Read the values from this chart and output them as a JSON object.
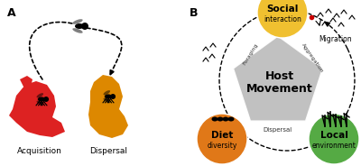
{
  "panel_A_label": "A",
  "panel_B_label": "B",
  "acquisition_label": "Acquisition",
  "dispersal_label": "Dispersal",
  "social_label1": "Social",
  "social_label2": "interaction",
  "diet_label1": "Diet",
  "diet_label2": "diversity",
  "local_label1": "Local",
  "local_label2": "environment",
  "host_movement_label1": "Host",
  "host_movement_label2": "Movement",
  "foraging_label": "Foraging",
  "aggregation_label": "Aggregation",
  "dispersal_center_label": "Dispersal",
  "migration_label": "Migration",
  "social_color": "#F0C030",
  "diet_color": "#E07818",
  "local_color": "#55AA44",
  "pentagon_color": "#BBBBBB",
  "red_blob_color": "#DD2222",
  "orange_blob_color": "#DD8800",
  "background_color": "#FFFFFF",
  "fig_width": 4.0,
  "fig_height": 1.84,
  "dpi": 100
}
